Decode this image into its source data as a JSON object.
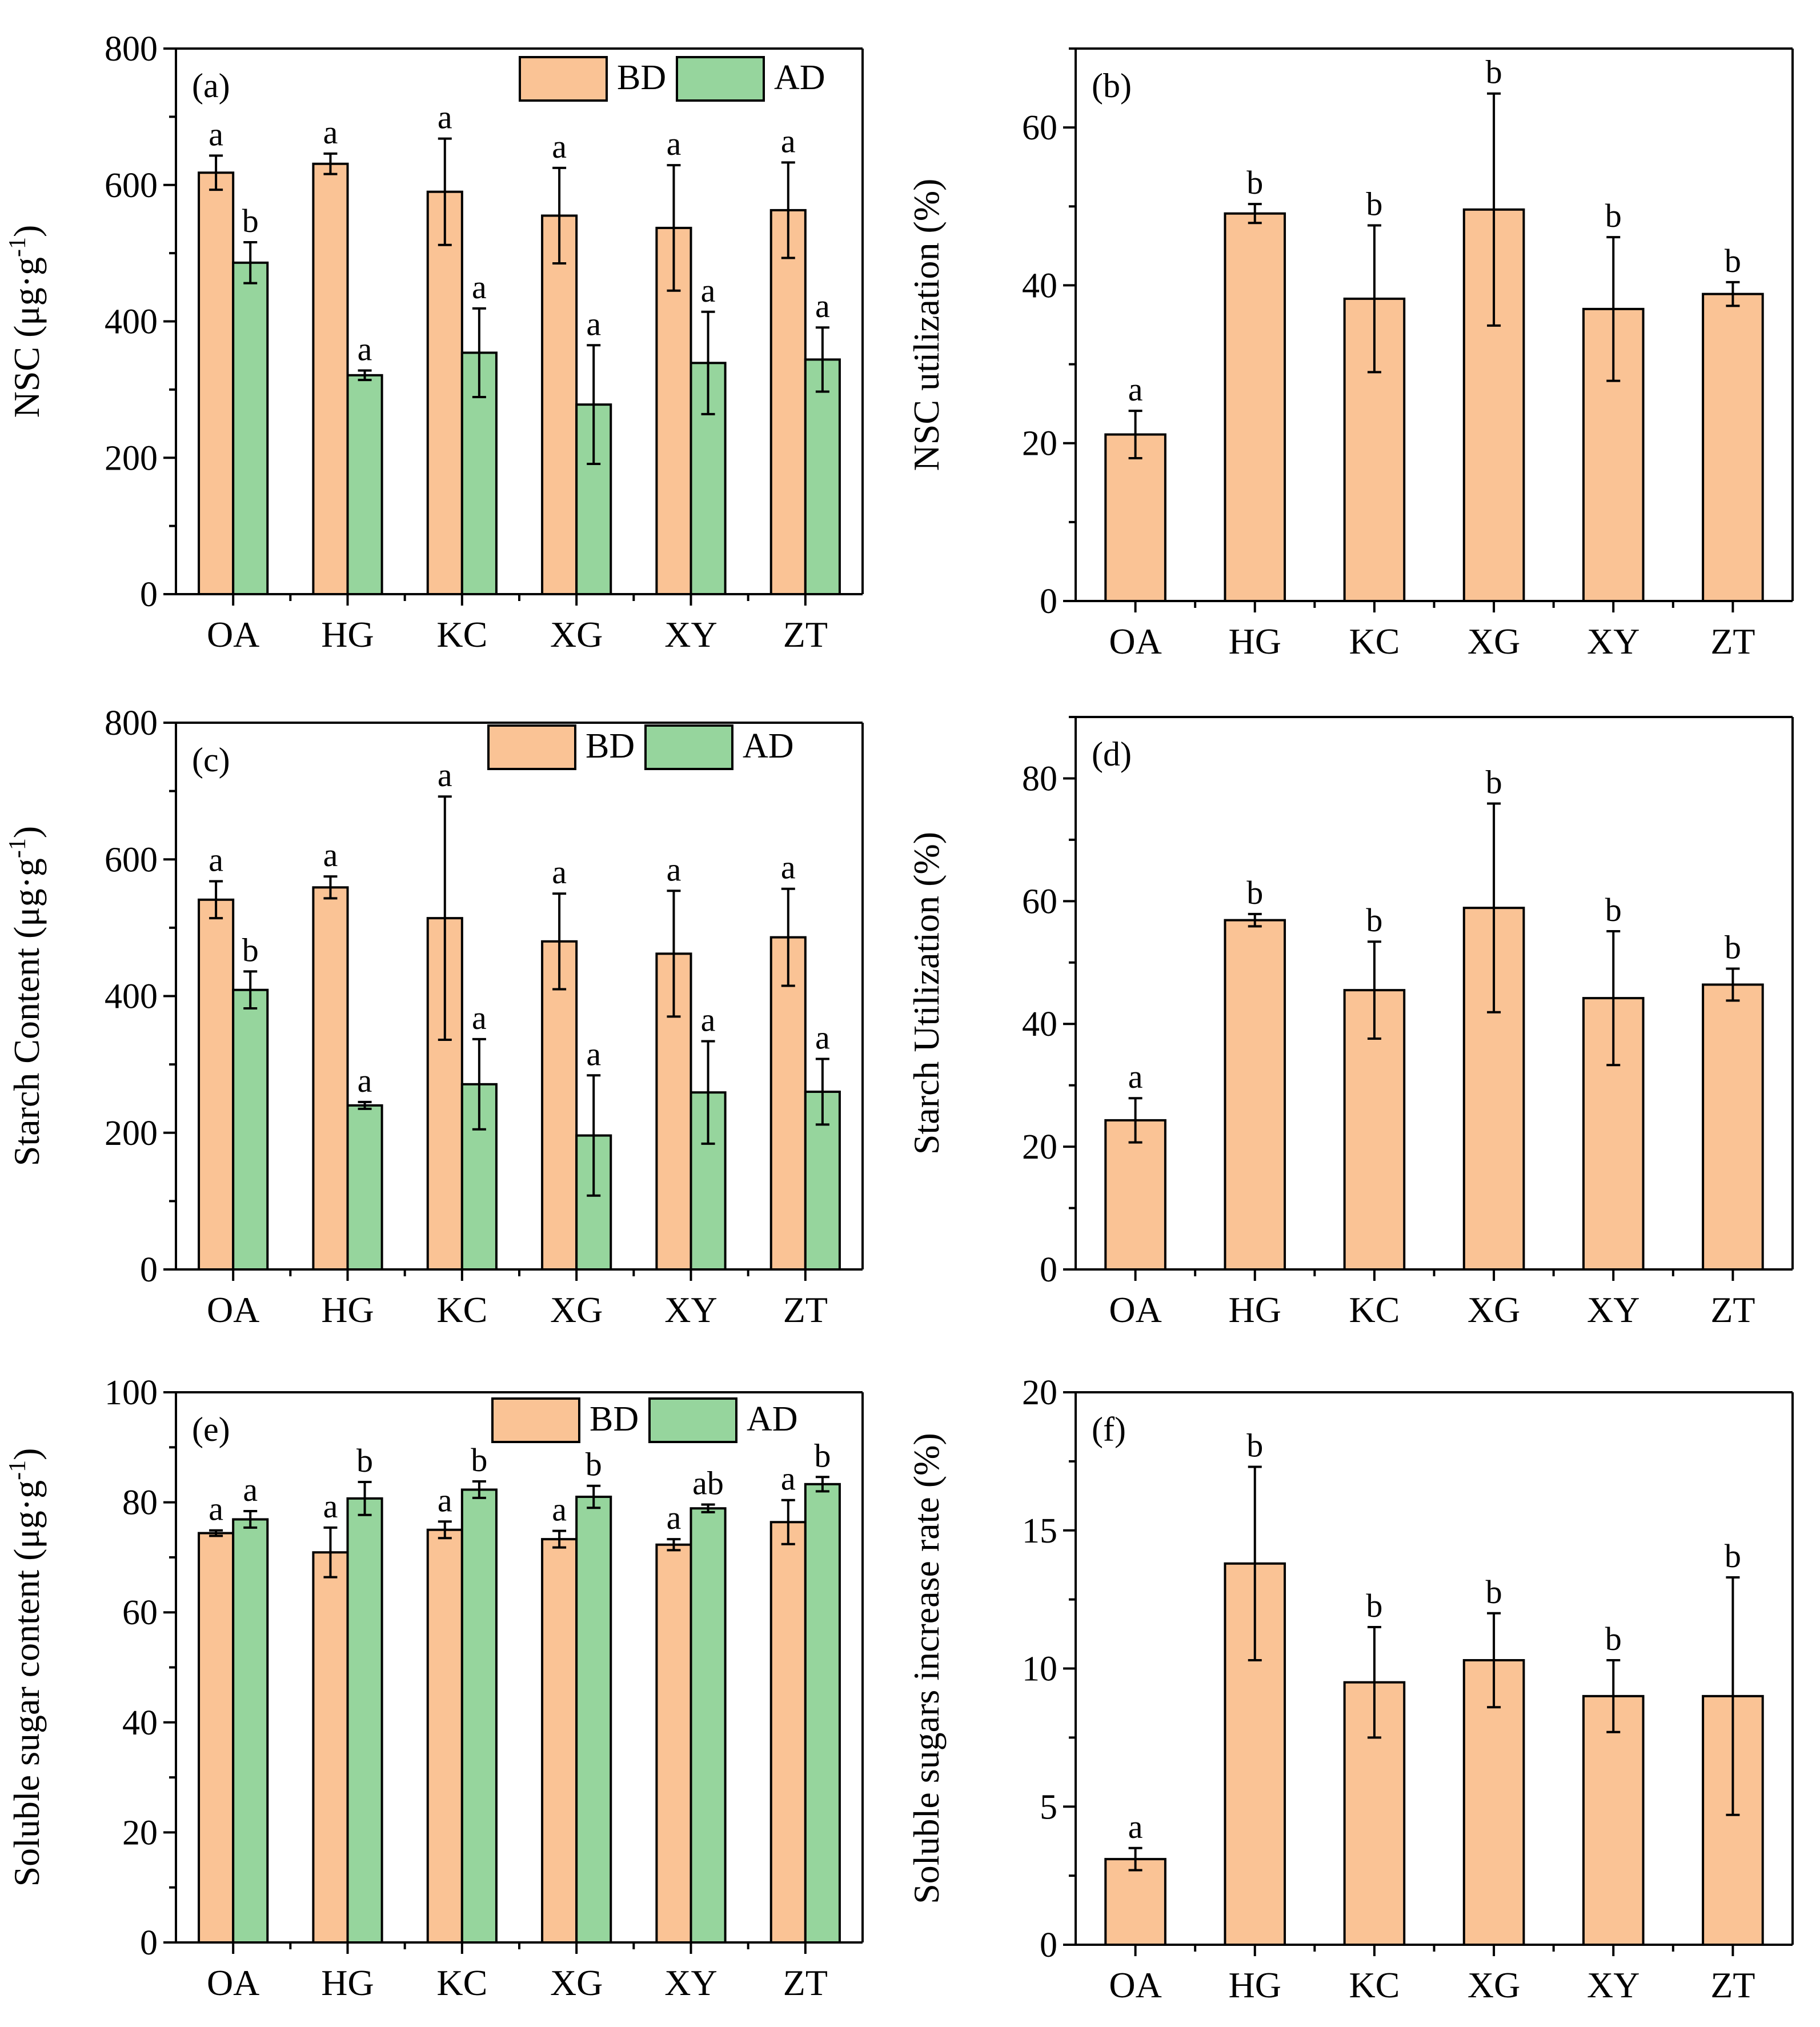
{
  "colors": {
    "BD": "#FAC395",
    "AD": "#96D59D",
    "axis": "#000000"
  },
  "chart_data": [
    {
      "id": "a",
      "type": "bar",
      "tag": "(a)",
      "ylabel": "NSC (μg·g",
      "ylabel_sup": "-1",
      "ylabel_end": ")",
      "ylim": [
        0,
        800
      ],
      "major_ticks": [
        0,
        200,
        400,
        600,
        800
      ],
      "minor_step": 100,
      "categories": [
        "OA",
        "HG",
        "KC",
        "XG",
        "XY",
        "ZT"
      ],
      "legend": [
        "BD",
        "AD"
      ],
      "series": [
        {
          "name": "BD",
          "values": [
            618,
            631,
            590,
            555,
            537,
            563
          ],
          "errors": [
            25,
            15,
            78,
            70,
            92,
            70
          ],
          "letters": [
            "a",
            "a",
            "a",
            "a",
            "a",
            "a"
          ]
        },
        {
          "name": "AD",
          "values": [
            486,
            321,
            354,
            278,
            339,
            344
          ],
          "errors": [
            30,
            7,
            65,
            87,
            75,
            47
          ],
          "letters": [
            "b",
            "a",
            "a",
            "a",
            "a",
            "a"
          ]
        }
      ]
    },
    {
      "id": "b",
      "type": "bar",
      "tag": "(b)",
      "ylabel": "NSC utilization (%)",
      "ylim": [
        0,
        70
      ],
      "major_ticks": [
        0,
        20,
        40,
        60
      ],
      "minor_step": 10,
      "categories": [
        "OA",
        "HG",
        "KC",
        "XG",
        "XY",
        "ZT"
      ],
      "series": [
        {
          "name": "utilization",
          "values": [
            21.1,
            49.1,
            38.3,
            49.6,
            37.0,
            38.9
          ],
          "errors": [
            3.0,
            1.2,
            9.3,
            14.7,
            9.1,
            1.5
          ],
          "letters": [
            "a",
            "b",
            "b",
            "b",
            "b",
            "b"
          ]
        }
      ]
    },
    {
      "id": "c",
      "type": "bar",
      "tag": "(c)",
      "ylabel": "Starch Content (μg·g",
      "ylabel_sup": "-1",
      "ylabel_end": ")",
      "ylim": [
        0,
        800
      ],
      "major_ticks": [
        0,
        200,
        400,
        600,
        800
      ],
      "minor_step": 100,
      "categories": [
        "OA",
        "HG",
        "KC",
        "XG",
        "XY",
        "ZT"
      ],
      "legend": [
        "BD",
        "AD"
      ],
      "series": [
        {
          "name": "BD",
          "values": [
            541,
            559,
            514,
            480,
            462,
            486
          ],
          "errors": [
            27,
            16,
            178,
            70,
            92,
            71
          ],
          "letters": [
            "a",
            "a",
            "a",
            "a",
            "a",
            "a"
          ]
        },
        {
          "name": "AD",
          "values": [
            409,
            240,
            271,
            196,
            259,
            260
          ],
          "errors": [
            27,
            5,
            66,
            88,
            75,
            48
          ],
          "letters": [
            "b",
            "a",
            "a",
            "a",
            "a",
            "a"
          ]
        }
      ]
    },
    {
      "id": "d",
      "type": "bar",
      "tag": "(d)",
      "ylabel": "Starch Utilization (%)",
      "ylim": [
        0,
        90
      ],
      "major_ticks": [
        0,
        20,
        40,
        60,
        80
      ],
      "minor_step": 10,
      "categories": [
        "OA",
        "HG",
        "KC",
        "XG",
        "XY",
        "ZT"
      ],
      "series": [
        {
          "name": "utilization",
          "values": [
            24.3,
            56.9,
            45.5,
            58.9,
            44.2,
            46.4
          ],
          "errors": [
            3.6,
            1.0,
            7.9,
            17.0,
            10.9,
            2.6
          ],
          "letters": [
            "a",
            "b",
            "b",
            "b",
            "b",
            "b"
          ]
        }
      ]
    },
    {
      "id": "e",
      "type": "bar",
      "tag": "(e)",
      "ylabel": "Soluble sugar content (μg·g",
      "ylabel_sup": "-1",
      "ylabel_end": ")",
      "ylim": [
        0,
        100
      ],
      "major_ticks": [
        0,
        20,
        40,
        60,
        80,
        100
      ],
      "minor_step": 10,
      "categories": [
        "OA",
        "HG",
        "KC",
        "XG",
        "XY",
        "ZT"
      ],
      "legend": [
        "BD",
        "AD"
      ],
      "series": [
        {
          "name": "BD",
          "values": [
            74.4,
            70.9,
            75.0,
            73.3,
            72.3,
            76.4
          ],
          "errors": [
            0.5,
            4.5,
            1.5,
            1.5,
            1.0,
            4.0
          ],
          "letters": [
            "a",
            "a",
            "a",
            "a",
            "a",
            "a"
          ]
        },
        {
          "name": "AD",
          "values": [
            76.9,
            80.7,
            82.3,
            81.0,
            78.9,
            83.3
          ],
          "errors": [
            1.5,
            3.0,
            1.5,
            2.0,
            0.7,
            1.3
          ],
          "letters": [
            "a",
            "b",
            "b",
            "b",
            "ab",
            "b"
          ]
        }
      ]
    },
    {
      "id": "f",
      "type": "bar",
      "tag": "(f)",
      "ylabel": "Soluble sugars increase rate (%)",
      "ylim": [
        0,
        20
      ],
      "major_ticks": [
        0,
        5,
        10,
        15,
        20
      ],
      "minor_step": 2.5,
      "categories": [
        "OA",
        "HG",
        "KC",
        "XG",
        "XY",
        "ZT"
      ],
      "series": [
        {
          "name": "increase",
          "values": [
            3.1,
            13.8,
            9.5,
            10.3,
            9.0,
            9.0
          ],
          "errors": [
            0.4,
            3.5,
            2.0,
            1.7,
            1.3,
            4.3
          ],
          "letters": [
            "a",
            "b",
            "b",
            "b",
            "b",
            "b"
          ]
        }
      ]
    }
  ]
}
